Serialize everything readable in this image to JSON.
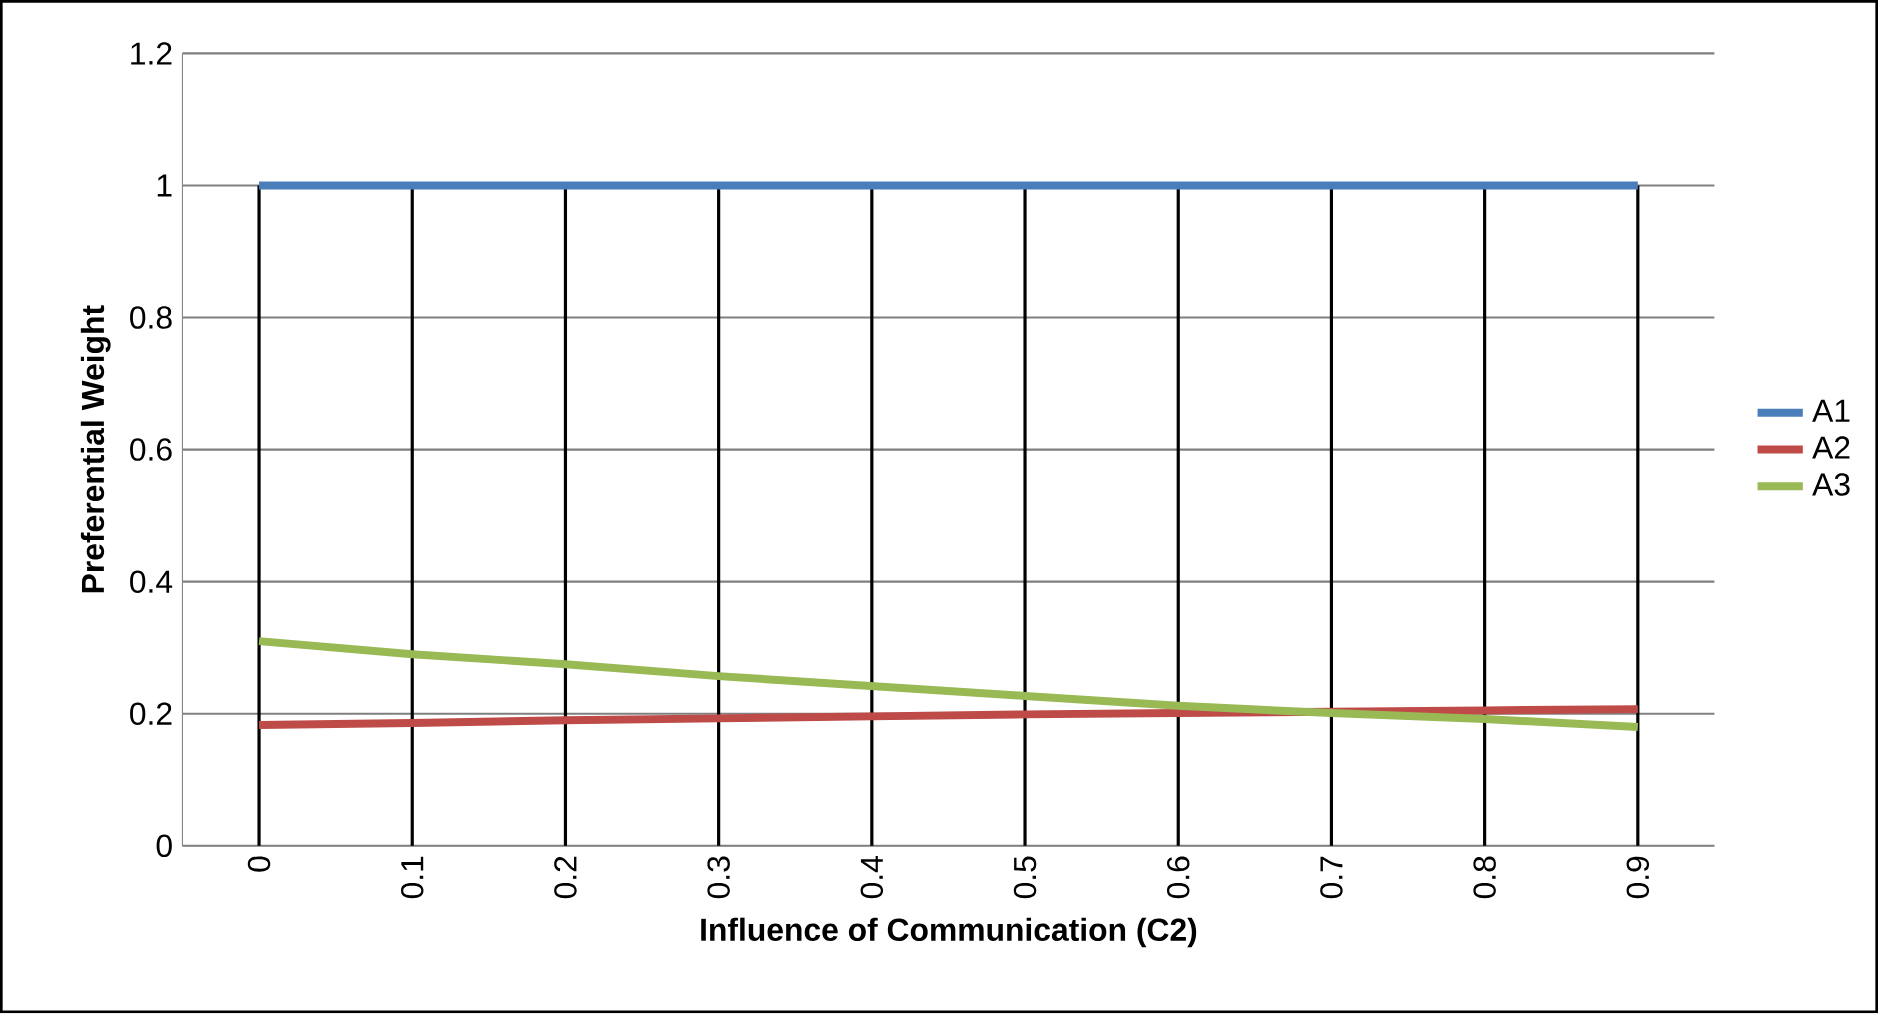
{
  "chart_data": {
    "type": "line",
    "xlabel": "Influence of  Communication (C2)",
    "ylabel": "Preferential  Weight",
    "categories": [
      "0",
      "0.1",
      "0.2",
      "0.3",
      "0.4",
      "0.5",
      "0.6",
      "0.7",
      "0.8",
      "0.9"
    ],
    "series": [
      {
        "name": "A1",
        "color": "#4a7ebb",
        "values": [
          1,
          1,
          1,
          1,
          1,
          1,
          1,
          1,
          1,
          1
        ]
      },
      {
        "name": "A2",
        "color": "#be4b48",
        "values": [
          0.183,
          0.186,
          0.19,
          0.193,
          0.196,
          0.199,
          0.201,
          0.203,
          0.205,
          0.207
        ]
      },
      {
        "name": "A3",
        "color": "#98b954",
        "values": [
          0.31,
          0.29,
          0.275,
          0.257,
          0.242,
          0.227,
          0.212,
          0.201,
          0.192,
          0.18
        ]
      }
    ],
    "ylim": [
      0,
      1.2
    ],
    "yticks": [
      0,
      0.2,
      0.4,
      0.6,
      0.8,
      1,
      1.2
    ],
    "grid": true,
    "legend": "right",
    "marker": "none",
    "line_style": "solid"
  }
}
